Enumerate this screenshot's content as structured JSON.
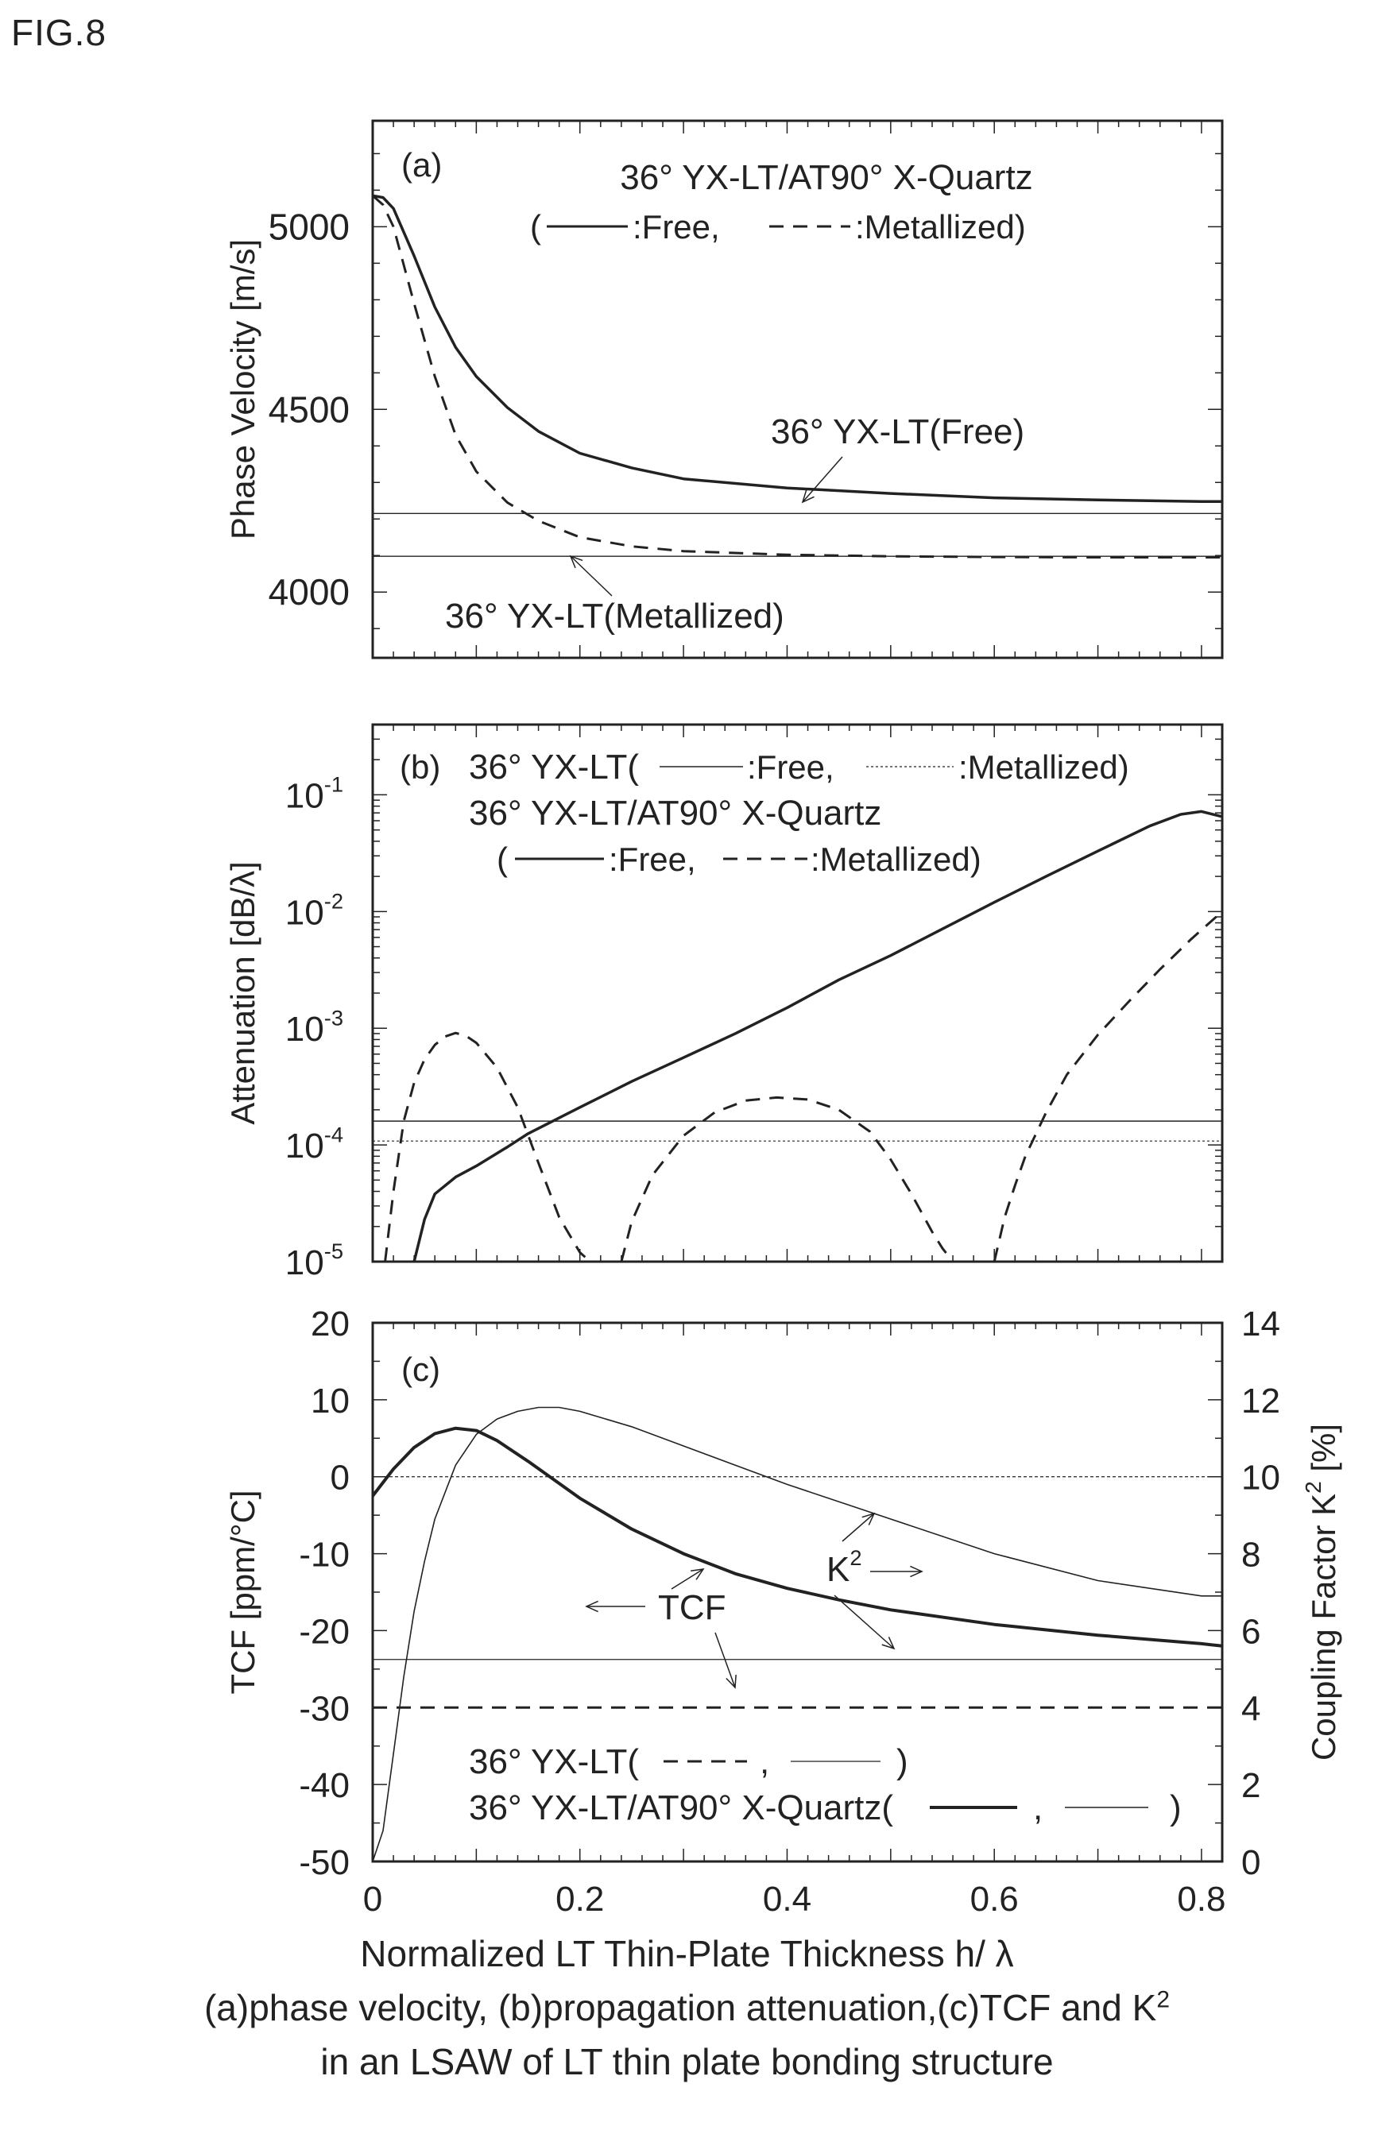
{
  "figure_label": "FIG.8",
  "caption": {
    "line1": "Normalized LT Thin-Plate Thickness h/ λ",
    "line2": "(a)phase velocity, (b)propagation attenuation,(c)TCF and K",
    "line2_sup": "2",
    "line3": "in an LSAW of LT thin plate bonding structure"
  },
  "chart_data": [
    {
      "panel": "(a)",
      "type": "line",
      "title": "36° YX-LT/AT90° X-Quartz",
      "legend_text": {
        "open": "(",
        "free": ":Free,",
        "metal": ":Metallized)"
      },
      "ylabel": "Phase Velocity [m/s]",
      "xlim": [
        0,
        0.82
      ],
      "ylim": [
        3820,
        5290
      ],
      "yticks": [
        4000,
        4500,
        5000
      ],
      "series": [
        {
          "name": "Free",
          "style": "solid",
          "x": [
            0,
            0.01,
            0.02,
            0.04,
            0.06,
            0.08,
            0.1,
            0.13,
            0.16,
            0.2,
            0.25,
            0.3,
            0.4,
            0.5,
            0.6,
            0.7,
            0.8,
            0.82
          ],
          "y": [
            5085,
            5080,
            5050,
            4920,
            4780,
            4670,
            4590,
            4505,
            4440,
            4380,
            4340,
            4310,
            4285,
            4270,
            4258,
            4252,
            4248,
            4248
          ]
        },
        {
          "name": "Metallized",
          "style": "dashed",
          "x": [
            0,
            0.01,
            0.02,
            0.04,
            0.06,
            0.08,
            0.1,
            0.13,
            0.16,
            0.2,
            0.25,
            0.3,
            0.4,
            0.5,
            0.6,
            0.7,
            0.8,
            0.82
          ],
          "y": [
            5085,
            5060,
            5000,
            4790,
            4590,
            4430,
            4330,
            4245,
            4195,
            4150,
            4125,
            4112,
            4102,
            4098,
            4096,
            4095,
            4095,
            4095
          ]
        }
      ],
      "references": [
        {
          "name": "36° YX-LT(Free)",
          "y": 4215
        },
        {
          "name": "36° YX-LT(Metallized)",
          "y": 4098
        }
      ]
    },
    {
      "panel": "(b)",
      "type": "line",
      "yscale": "log",
      "ylabel": "Attenuation [dB/λ]",
      "legend_line1": {
        "prefix": "36° YX-LT(",
        "free": ":Free,",
        "metal": ":Metallized)"
      },
      "legend_line2": "36° YX-LT/AT90° X-Quartz",
      "legend_line3": {
        "open": "(",
        "free": ":Free,",
        "metal": ":Metallized)"
      },
      "xlim": [
        0,
        0.82
      ],
      "ylim": [
        1e-05,
        0.4
      ],
      "yticks": [
        {
          "base": "10",
          "exp": "-5",
          "v": 1e-05
        },
        {
          "base": "10",
          "exp": "-4",
          "v": 0.0001
        },
        {
          "base": "10",
          "exp": "-3",
          "v": 0.001
        },
        {
          "base": "10",
          "exp": "-2",
          "v": 0.01
        },
        {
          "base": "10",
          "exp": "-1",
          "v": 0.1
        }
      ],
      "series": [
        {
          "name": "Free",
          "style": "solid",
          "x": [
            0.04,
            0.05,
            0.06,
            0.08,
            0.1,
            0.13,
            0.15,
            0.2,
            0.25,
            0.3,
            0.35,
            0.4,
            0.45,
            0.5,
            0.55,
            0.6,
            0.65,
            0.7,
            0.75,
            0.78,
            0.8,
            0.82
          ],
          "y": [
            1e-05,
            2.3e-05,
            3.8e-05,
            5.3e-05,
            6.6e-05,
            9.6e-05,
            0.000125,
            0.00021,
            0.00035,
            0.00056,
            0.0009,
            0.0015,
            0.0026,
            0.0042,
            0.0071,
            0.012,
            0.02,
            0.033,
            0.054,
            0.068,
            0.072,
            0.065
          ]
        },
        {
          "name": "Metallized",
          "style": "dashed",
          "x": [
            0.012,
            0.02,
            0.03,
            0.04,
            0.05,
            0.06,
            0.07,
            0.08,
            0.09,
            0.1,
            0.12,
            0.14,
            0.16,
            0.18,
            0.2,
            0.21
          ],
          "y": [
            1e-05,
            4e-05,
            0.00016,
            0.00034,
            0.00054,
            0.00072,
            0.00085,
            0.00091,
            0.00086,
            0.00075,
            0.00046,
            0.00021,
            7e-05,
            2.4e-05,
            1.2e-05,
            1e-05
          ]
        },
        {
          "name": "Metallized",
          "style": "dashed",
          "x": [
            0.24,
            0.25,
            0.27,
            0.3,
            0.33,
            0.36,
            0.39,
            0.42,
            0.45,
            0.48,
            0.5,
            0.52,
            0.54,
            0.55,
            0.56
          ],
          "y": [
            1e-05,
            2.2e-05,
            5.5e-05,
            0.00012,
            0.00019,
            0.00024,
            0.000255,
            0.000245,
            0.0002,
            0.00013,
            7.5e-05,
            3.8e-05,
            1.8e-05,
            1.3e-05,
            1e-05
          ]
        },
        {
          "name": "Metallized",
          "style": "dashed",
          "x": [
            0.6,
            0.61,
            0.62,
            0.63,
            0.65,
            0.67,
            0.7,
            0.73,
            0.76,
            0.79,
            0.82
          ],
          "y": [
            1e-05,
            2.4e-05,
            4.5e-05,
            8e-05,
            0.00019,
            0.0004,
            0.00088,
            0.0017,
            0.0032,
            0.0058,
            0.01
          ]
        }
      ],
      "references": [
        {
          "name": "Free",
          "y": 0.00016
        },
        {
          "name": "Metallized",
          "y": 0.000108
        }
      ]
    },
    {
      "panel": "(c)",
      "type": "line",
      "ylabel_left": "TCF [ppm/°C]",
      "ylabel_right": {
        "main": "Coupling Factor K",
        "sup": "2",
        "unit": "[%]"
      },
      "xlabel": "Normalized LT Thin-Plate Thickness h/ λ",
      "xlim": [
        0,
        0.82
      ],
      "xticks": [
        "0",
        "0.2",
        "0.4",
        "0.6",
        "0.8"
      ],
      "ylim_left": [
        -50,
        20
      ],
      "yticks_left": [
        -50,
        -40,
        -30,
        -20,
        -10,
        0,
        10,
        20
      ],
      "ylim_right": [
        0,
        14
      ],
      "yticks_right": [
        0,
        2,
        4,
        6,
        8,
        10,
        12,
        14
      ],
      "annotations": {
        "tcf": "TCF",
        "k2": "K",
        "k2_sup": "2"
      },
      "legend_line1": {
        "prefix": "36° YX-LT(",
        "sep": ",",
        "close": ")"
      },
      "legend_line2": {
        "prefix": "36° YX-LT/AT90° X-Quartz(",
        "sep": ",",
        "close": ")"
      },
      "series": [
        {
          "name": "TCF",
          "axis": "left",
          "style": "solid-thick",
          "x": [
            0,
            0.02,
            0.04,
            0.06,
            0.08,
            0.1,
            0.12,
            0.15,
            0.2,
            0.25,
            0.3,
            0.35,
            0.4,
            0.45,
            0.5,
            0.6,
            0.7,
            0.8,
            0.82
          ],
          "y": [
            -2.5,
            1,
            3.8,
            5.6,
            6.3,
            6,
            4.7,
            2,
            -2.8,
            -6.8,
            -10,
            -12.6,
            -14.5,
            -16,
            -17.3,
            -19.2,
            -20.6,
            -21.7,
            -22
          ]
        },
        {
          "name": "K2",
          "axis": "right",
          "style": "solid-thin",
          "x": [
            0,
            0.01,
            0.02,
            0.03,
            0.04,
            0.05,
            0.06,
            0.08,
            0.1,
            0.12,
            0.14,
            0.16,
            0.18,
            0.2,
            0.25,
            0.3,
            0.35,
            0.4,
            0.5,
            0.6,
            0.7,
            0.8,
            0.82
          ],
          "y": [
            0,
            0.8,
            2.8,
            4.8,
            6.5,
            7.8,
            8.9,
            10.3,
            11.1,
            11.5,
            11.7,
            11.8,
            11.8,
            11.7,
            11.3,
            10.8,
            10.3,
            9.8,
            8.9,
            8,
            7.3,
            6.9,
            6.9
          ]
        }
      ],
      "references": [
        {
          "name": "TCF",
          "axis": "left",
          "y": -30
        },
        {
          "name": "K2",
          "axis": "right",
          "y": 5.25
        }
      ]
    }
  ]
}
